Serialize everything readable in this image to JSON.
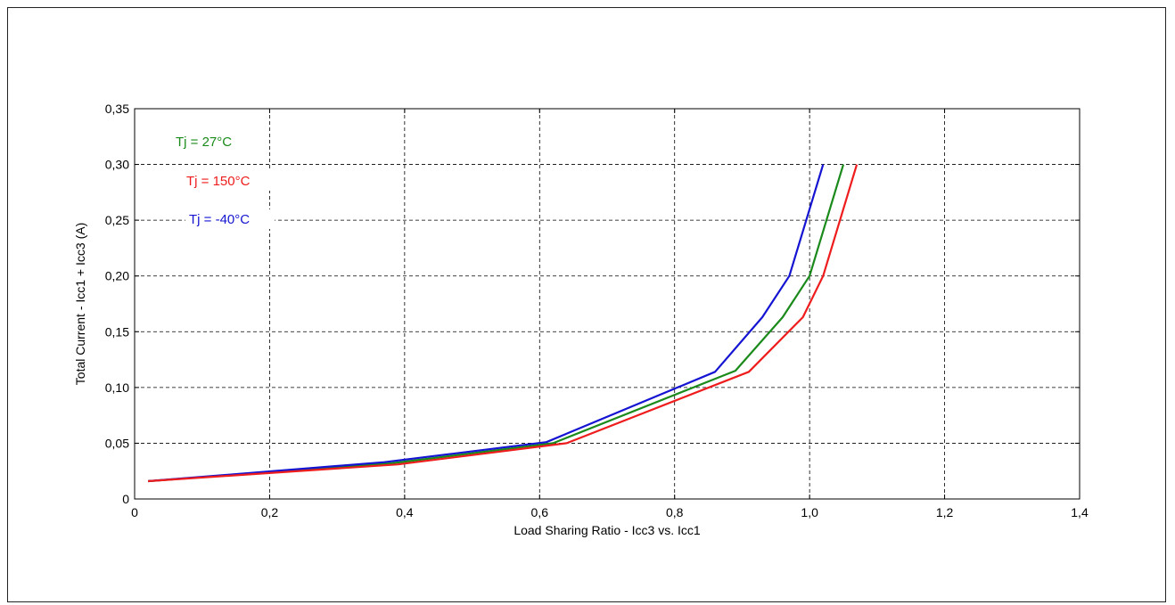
{
  "chart_data": {
    "type": "line",
    "title": "",
    "xlabel": "Load Sharing Ratio - Icc3 vs. Icc1",
    "ylabel": "Total Current - Icc1 + Icc3   (A)",
    "xlim": [
      0,
      1.4
    ],
    "ylim": [
      0,
      0.35
    ],
    "x_ticks": [
      0,
      0.2,
      0.4,
      0.6,
      0.8,
      1.0,
      1.2,
      1.4
    ],
    "x_tick_labels": [
      "0",
      "0,2",
      "0,4",
      "0,6",
      "0,8",
      "1,0",
      "1,2",
      "1,4"
    ],
    "y_ticks": [
      0,
      0.05,
      0.1,
      0.15,
      0.2,
      0.25,
      0.3,
      0.35
    ],
    "y_tick_labels": [
      "0",
      "0,05",
      "0,10",
      "0,15",
      "0,20",
      "0,25",
      "0,30",
      "0,35"
    ],
    "grid": true,
    "legend_placement": "top-left",
    "series": [
      {
        "name": "Tj = 27°C",
        "color": "#1a8a1a",
        "points": [
          [
            0.02,
            0.016
          ],
          [
            0.38,
            0.032
          ],
          [
            0.62,
            0.05
          ],
          [
            0.89,
            0.115
          ],
          [
            0.96,
            0.163
          ],
          [
            1.0,
            0.2
          ],
          [
            1.05,
            0.3
          ]
        ]
      },
      {
        "name": "Tj = 150°C",
        "color": "#ee1c1c",
        "points": [
          [
            0.02,
            0.016
          ],
          [
            0.39,
            0.031
          ],
          [
            0.64,
            0.05
          ],
          [
            0.91,
            0.114
          ],
          [
            0.99,
            0.163
          ],
          [
            1.02,
            0.2
          ],
          [
            1.07,
            0.3
          ]
        ]
      },
      {
        "name": "Tj = -40°C",
        "color": "#1414d2",
        "points": [
          [
            0.02,
            0.016
          ],
          [
            0.37,
            0.033
          ],
          [
            0.61,
            0.051
          ],
          [
            0.86,
            0.114
          ],
          [
            0.93,
            0.163
          ],
          [
            0.97,
            0.2
          ],
          [
            1.02,
            0.3
          ]
        ]
      }
    ]
  }
}
